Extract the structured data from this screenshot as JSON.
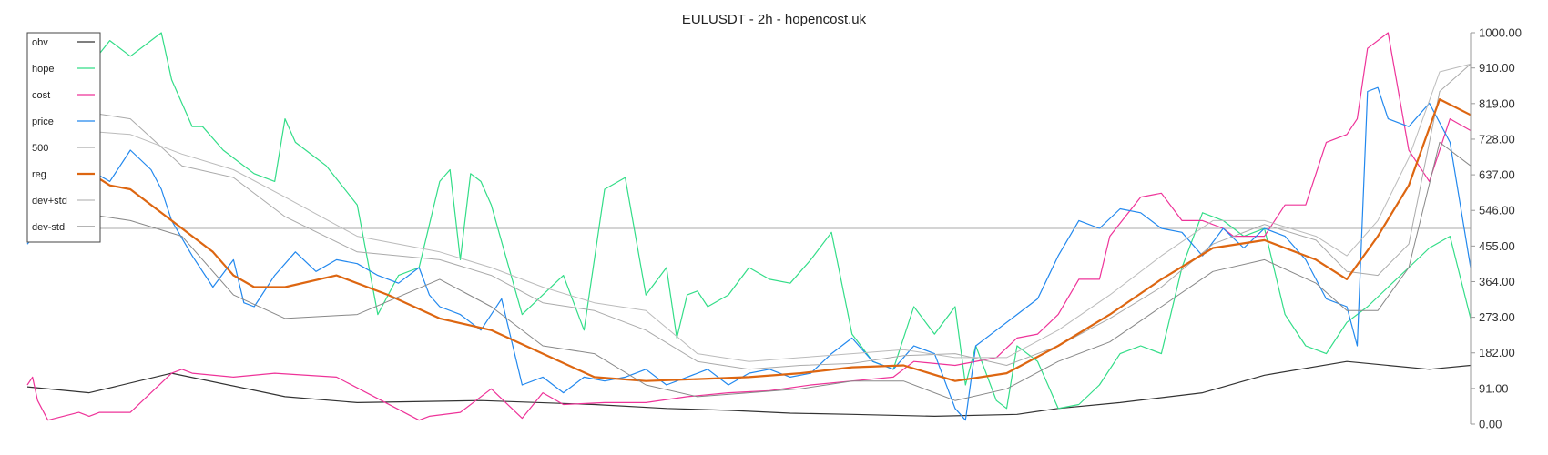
{
  "chart_data": {
    "type": "line",
    "title": "EULUSDT - 2h - hopencost.uk",
    "xlabel": "",
    "ylabel": "",
    "ylim": [
      0,
      1000
    ],
    "y_ticks": [
      "0.00",
      "91.00",
      "182.00",
      "273.00",
      "364.00",
      "455.00",
      "546.00",
      "637.00",
      "728.00",
      "819.00",
      "910.00",
      "1000.00"
    ],
    "reference_line": 500,
    "grid": false,
    "legend_position": "top-left",
    "series": [
      {
        "name": "obv",
        "color": "#333333",
        "width": 1.2,
        "x": [
          0,
          6,
          14,
          25,
          32,
          44,
          55,
          62,
          68,
          74,
          80,
          88,
          96,
          100,
          106,
          114,
          120,
          128,
          136,
          140
        ],
        "values": [
          95,
          80,
          130,
          70,
          55,
          60,
          50,
          40,
          35,
          28,
          25,
          20,
          25,
          40,
          55,
          80,
          125,
          160,
          140,
          150
        ]
      },
      {
        "name": "hope",
        "color": "#33dd88",
        "width": 1.2,
        "x": [
          0,
          5,
          8,
          10,
          13,
          14,
          16,
          17,
          19,
          20,
          22,
          24,
          25,
          26,
          27,
          28,
          29,
          32,
          34,
          36,
          38,
          40,
          41,
          42,
          43,
          44,
          45,
          48,
          52,
          54,
          56,
          58,
          60,
          62,
          63,
          64,
          65,
          66,
          68,
          70,
          72,
          74,
          76,
          78,
          80,
          82,
          84,
          86,
          88,
          90,
          91,
          92,
          94,
          95,
          96,
          98,
          100,
          102,
          104,
          106,
          108,
          110,
          112,
          114,
          116,
          118,
          120,
          122,
          124,
          126,
          128,
          130,
          132,
          134,
          136,
          138,
          140
        ],
        "values": [
          850,
          880,
          980,
          940,
          1000,
          880,
          760,
          760,
          700,
          680,
          640,
          620,
          780,
          720,
          700,
          680,
          660,
          560,
          280,
          380,
          400,
          620,
          650,
          420,
          640,
          620,
          560,
          280,
          380,
          240,
          600,
          630,
          330,
          400,
          220,
          330,
          340,
          300,
          330,
          400,
          370,
          360,
          420,
          490,
          230,
          160,
          140,
          300,
          230,
          300,
          100,
          200,
          60,
          40,
          200,
          160,
          40,
          50,
          100,
          180,
          200,
          180,
          400,
          540,
          520,
          480,
          500,
          280,
          200,
          180,
          260,
          300,
          350,
          400,
          450,
          480,
          270
        ]
      },
      {
        "name": "cost",
        "color": "#ee3399",
        "width": 1.2,
        "x": [
          0,
          0.5,
          1,
          2,
          5,
          6,
          7,
          10,
          14,
          15,
          16,
          20,
          24,
          30,
          38,
          39,
          42,
          45,
          48,
          50,
          52,
          56,
          60,
          64,
          68,
          72,
          76,
          80,
          84,
          86,
          90,
          94,
          96,
          98,
          100,
          102,
          104,
          105,
          108,
          110,
          112,
          114,
          116,
          117,
          118,
          120,
          122,
          124,
          126,
          128,
          129,
          130,
          132,
          134,
          136,
          138,
          140
        ],
        "values": [
          100,
          120,
          60,
          10,
          30,
          20,
          30,
          30,
          130,
          140,
          130,
          120,
          130,
          120,
          10,
          20,
          30,
          90,
          15,
          80,
          50,
          55,
          55,
          70,
          80,
          85,
          100,
          110,
          120,
          160,
          150,
          170,
          220,
          230,
          280,
          370,
          370,
          480,
          580,
          590,
          520,
          520,
          500,
          480,
          480,
          480,
          560,
          560,
          720,
          740,
          780,
          960,
          1000,
          700,
          620,
          780,
          750
        ]
      },
      {
        "name": "price",
        "color": "#2288ee",
        "width": 1.2,
        "x": [
          0,
          3,
          5,
          6,
          8,
          10,
          12,
          13,
          14,
          16,
          18,
          20,
          21,
          22,
          24,
          26,
          28,
          30,
          32,
          34,
          36,
          38,
          39,
          40,
          42,
          44,
          46,
          48,
          50,
          52,
          54,
          56,
          58,
          60,
          62,
          64,
          66,
          68,
          70,
          72,
          74,
          76,
          78,
          80,
          82,
          84,
          86,
          88,
          90,
          91,
          92,
          94,
          96,
          98,
          100,
          102,
          104,
          106,
          108,
          110,
          112,
          114,
          116,
          118,
          120,
          122,
          124,
          126,
          128,
          129,
          130,
          131,
          132,
          134,
          136,
          138,
          140
        ],
        "values": [
          460,
          560,
          580,
          650,
          620,
          700,
          650,
          600,
          520,
          430,
          350,
          420,
          310,
          300,
          380,
          440,
          390,
          420,
          410,
          380,
          360,
          400,
          330,
          300,
          280,
          240,
          320,
          100,
          120,
          80,
          120,
          110,
          120,
          140,
          100,
          120,
          140,
          100,
          130,
          140,
          120,
          130,
          180,
          220,
          160,
          140,
          200,
          180,
          40,
          10,
          200,
          240,
          280,
          320,
          430,
          520,
          500,
          550,
          540,
          500,
          490,
          430,
          500,
          450,
          500,
          480,
          420,
          320,
          300,
          200,
          850,
          860,
          780,
          760,
          820,
          720,
          400
        ]
      },
      {
        "name": "500",
        "color": "#aaaaaa",
        "width": 1.0,
        "x": [
          0,
          10,
          15,
          20,
          25,
          32,
          40,
          45,
          50,
          55,
          60,
          65,
          70,
          75,
          80,
          85,
          90,
          95,
          100,
          105,
          110,
          115,
          120,
          125,
          128,
          131,
          134,
          137,
          140
        ],
        "values": [
          820,
          780,
          660,
          630,
          530,
          440,
          420,
          380,
          310,
          290,
          240,
          160,
          140,
          150,
          155,
          175,
          180,
          150,
          200,
          270,
          350,
          460,
          510,
          470,
          390,
          380,
          460,
          850,
          920
        ]
      },
      {
        "name": "reg",
        "color": "#dd6611",
        "width": 2.2,
        "x": [
          0,
          5,
          8,
          10,
          14,
          18,
          20,
          22,
          25,
          30,
          35,
          40,
          45,
          50,
          55,
          60,
          65,
          70,
          75,
          80,
          85,
          90,
          95,
          100,
          105,
          110,
          115,
          120,
          125,
          128,
          131,
          134,
          137,
          140
        ],
        "values": [
          680,
          660,
          610,
          600,
          520,
          440,
          380,
          350,
          350,
          380,
          330,
          270,
          240,
          180,
          120,
          110,
          115,
          120,
          130,
          145,
          150,
          110,
          130,
          200,
          280,
          370,
          450,
          470,
          420,
          370,
          480,
          610,
          830,
          790
        ]
      },
      {
        "name": "dev+std",
        "color": "#bbbbbb",
        "width": 1.0,
        "x": [
          0,
          10,
          15,
          20,
          25,
          32,
          40,
          45,
          50,
          55,
          60,
          65,
          70,
          75,
          80,
          85,
          90,
          95,
          100,
          105,
          110,
          115,
          120,
          125,
          128,
          131,
          134,
          137,
          140
        ],
        "values": [
          760,
          740,
          690,
          650,
          580,
          480,
          440,
          400,
          350,
          310,
          290,
          180,
          160,
          170,
          180,
          190,
          170,
          170,
          240,
          330,
          430,
          520,
          520,
          480,
          430,
          520,
          680,
          900,
          920
        ]
      },
      {
        "name": "dev-std",
        "color": "#888888",
        "width": 1.0,
        "x": [
          0,
          10,
          15,
          20,
          25,
          32,
          40,
          45,
          50,
          55,
          60,
          65,
          70,
          75,
          80,
          85,
          90,
          95,
          100,
          105,
          110,
          115,
          120,
          125,
          128,
          131,
          134,
          137,
          140
        ],
        "values": [
          560,
          520,
          480,
          330,
          270,
          280,
          370,
          300,
          200,
          180,
          100,
          70,
          80,
          90,
          110,
          110,
          60,
          90,
          160,
          210,
          300,
          390,
          420,
          360,
          290,
          290,
          400,
          720,
          660
        ]
      }
    ]
  }
}
